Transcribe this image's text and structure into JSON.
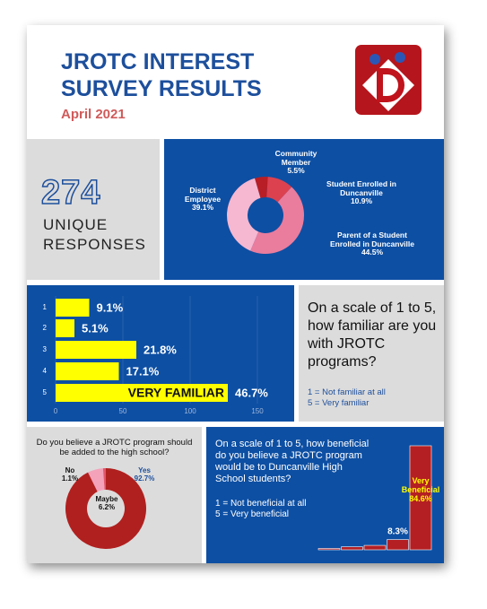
{
  "header": {
    "title": "JROTC INTEREST SURVEY RESULTS",
    "subtitle": "April 2021"
  },
  "responses": {
    "count": 274,
    "label": "UNIQUE RESPONSES"
  },
  "chart_data": [
    {
      "type": "donut",
      "categories": [
        "Community Member",
        "Student Enrolled in Duncanville",
        "Parent of a Student Enrolled in Duncanville",
        "District Employee"
      ],
      "values": [
        5.5,
        10.9,
        44.5,
        39.1
      ],
      "value_labels": [
        "5.5%",
        "10.9%",
        "44.5%",
        "39.1%"
      ],
      "colors": [
        "#b81e25",
        "#dc4150",
        "#ea7c9d",
        "#f6b7d0"
      ]
    },
    {
      "type": "bar",
      "orientation": "horizontal",
      "question": "On a scale of 1 to 5, how familiar are you with JROTC programs?",
      "notes": [
        "1 = Not familiar at all",
        "5 = Very familiar"
      ],
      "categories": [
        "1",
        "2",
        "3",
        "4",
        "5"
      ],
      "values": [
        25,
        14,
        60,
        47,
        128
      ],
      "data_labels": [
        "9.1%",
        "5.1%",
        "21.8%",
        "17.1%",
        "46.7%"
      ],
      "annotation": "VERY FAMILIAR",
      "color": "#ffff00",
      "xlim": [
        0,
        150
      ],
      "xticks": [
        0,
        50,
        100,
        150
      ],
      "grid": true
    },
    {
      "type": "donut",
      "title": "Do you believe a JROTC program should be added to the high school?",
      "categories": [
        "Yes",
        "Maybe",
        "No"
      ],
      "values": [
        92.7,
        6.2,
        1.1
      ],
      "value_labels": [
        "92.7%",
        "6.2%",
        "1.1%"
      ],
      "colors": [
        "#b0201f",
        "#f3a2ba",
        "#e2566a"
      ]
    },
    {
      "type": "column",
      "title": "On a scale of 1 to 5, how beneficial do you believe a JROTC program would be to Duncanville High School students?",
      "notes": [
        "1 = Not beneficial at all",
        "5 = Very beneficial"
      ],
      "values": [
        1.1,
        2.4,
        3.6,
        8.3,
        84.6
      ],
      "value_labels": [
        null,
        null,
        null,
        "8.3%",
        "84.6%"
      ],
      "annotation": "Very Beneficial",
      "color": "#b41f23"
    }
  ]
}
